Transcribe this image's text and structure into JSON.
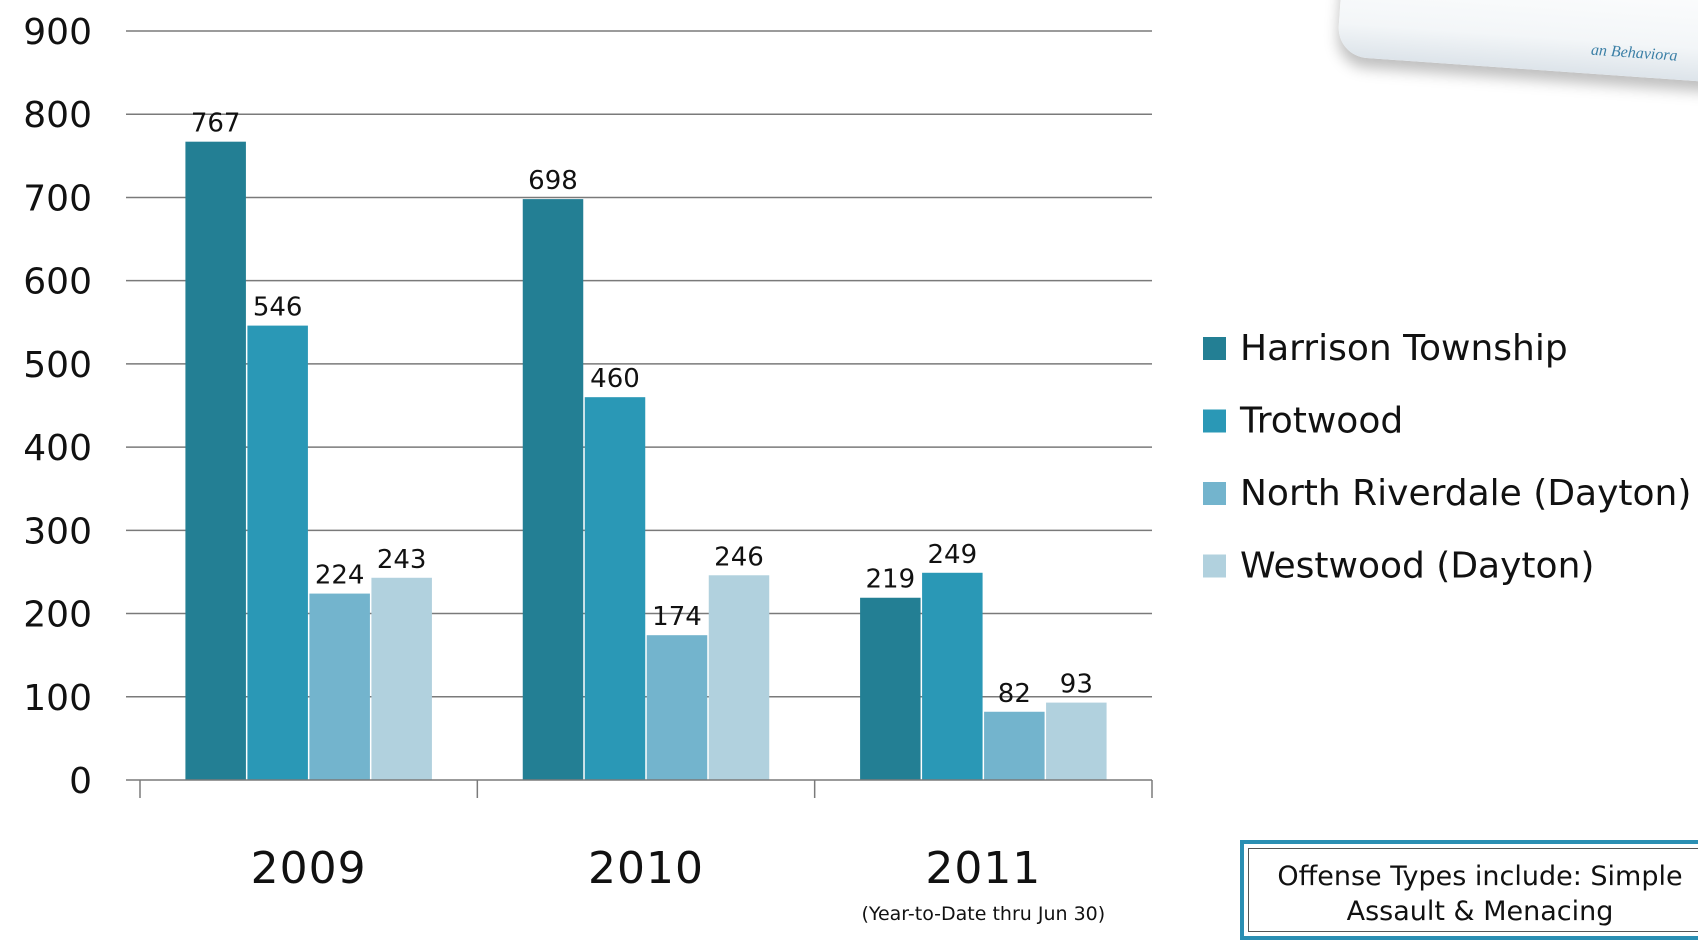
{
  "chart_data": {
    "type": "bar",
    "categories": [
      "2009",
      "2010",
      "2011"
    ],
    "category_sublabels": [
      "",
      "",
      "(Year-to-Date thru Jun 30)"
    ],
    "series": [
      {
        "name": "Harrison Township",
        "color": "#237f94",
        "values": [
          767,
          698,
          219
        ]
      },
      {
        "name": "Trotwood",
        "color": "#2a98b6",
        "values": [
          546,
          460,
          249
        ]
      },
      {
        "name": "North Riverdale (Dayton)",
        "color": "#73b4cd",
        "values": [
          224,
          174,
          82
        ]
      },
      {
        "name": "Westwood (Dayton)",
        "color": "#b1d1de",
        "values": [
          243,
          246,
          93
        ]
      }
    ],
    "yticks": [
      0,
      100,
      200,
      300,
      400,
      500,
      600,
      700,
      800,
      900
    ],
    "ylim": [
      0,
      900
    ],
    "grid": true,
    "legend_position": "right"
  },
  "note": {
    "line1": "Offense Types include: Simple",
    "line2": "Assault & Menacing"
  },
  "logo": {
    "fragment_text": "an Behaviora"
  }
}
